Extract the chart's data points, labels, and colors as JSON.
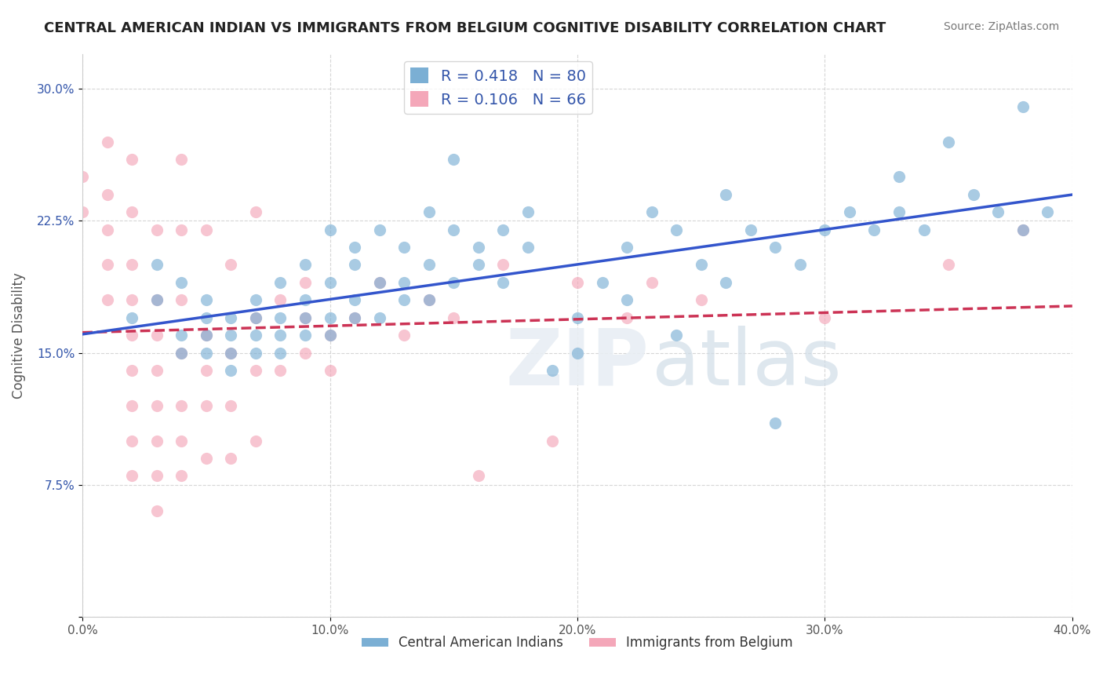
{
  "title": "CENTRAL AMERICAN INDIAN VS IMMIGRANTS FROM BELGIUM COGNITIVE DISABILITY CORRELATION CHART",
  "source": "Source: ZipAtlas.com",
  "xlabel": "",
  "ylabel": "Cognitive Disability",
  "xlim": [
    0.0,
    0.4
  ],
  "ylim": [
    0.0,
    0.32
  ],
  "xticks": [
    0.0,
    0.1,
    0.2,
    0.3,
    0.4
  ],
  "xtick_labels": [
    "0.0%",
    "10.0%",
    "20.0%",
    "30.0%",
    "40.0%"
  ],
  "yticks": [
    0.0,
    0.075,
    0.15,
    0.225,
    0.3
  ],
  "ytick_labels": [
    "",
    "7.5%",
    "15.0%",
    "22.5%",
    "30.0%"
  ],
  "blue_R": 0.418,
  "blue_N": 80,
  "pink_R": 0.106,
  "pink_N": 66,
  "blue_color": "#7bafd4",
  "pink_color": "#f4a7b9",
  "blue_label": "Central American Indians",
  "pink_label": "Immigrants from Belgium",
  "legend_text_color": "#3355aa",
  "watermark": "ZIPatlas",
  "background_color": "#ffffff",
  "grid_color": "#cccccc",
  "blue_scatter": [
    [
      0.02,
      0.17
    ],
    [
      0.03,
      0.2
    ],
    [
      0.03,
      0.18
    ],
    [
      0.04,
      0.19
    ],
    [
      0.04,
      0.16
    ],
    [
      0.04,
      0.15
    ],
    [
      0.05,
      0.17
    ],
    [
      0.05,
      0.16
    ],
    [
      0.05,
      0.15
    ],
    [
      0.05,
      0.18
    ],
    [
      0.06,
      0.17
    ],
    [
      0.06,
      0.16
    ],
    [
      0.06,
      0.15
    ],
    [
      0.06,
      0.14
    ],
    [
      0.07,
      0.18
    ],
    [
      0.07,
      0.17
    ],
    [
      0.07,
      0.16
    ],
    [
      0.07,
      0.15
    ],
    [
      0.08,
      0.19
    ],
    [
      0.08,
      0.17
    ],
    [
      0.08,
      0.16
    ],
    [
      0.08,
      0.15
    ],
    [
      0.09,
      0.2
    ],
    [
      0.09,
      0.18
    ],
    [
      0.09,
      0.17
    ],
    [
      0.09,
      0.16
    ],
    [
      0.1,
      0.22
    ],
    [
      0.1,
      0.19
    ],
    [
      0.1,
      0.17
    ],
    [
      0.1,
      0.16
    ],
    [
      0.11,
      0.21
    ],
    [
      0.11,
      0.2
    ],
    [
      0.11,
      0.18
    ],
    [
      0.11,
      0.17
    ],
    [
      0.12,
      0.22
    ],
    [
      0.12,
      0.19
    ],
    [
      0.12,
      0.17
    ],
    [
      0.13,
      0.21
    ],
    [
      0.13,
      0.19
    ],
    [
      0.13,
      0.18
    ],
    [
      0.14,
      0.23
    ],
    [
      0.14,
      0.2
    ],
    [
      0.14,
      0.18
    ],
    [
      0.15,
      0.22
    ],
    [
      0.15,
      0.19
    ],
    [
      0.16,
      0.21
    ],
    [
      0.16,
      0.2
    ],
    [
      0.17,
      0.22
    ],
    [
      0.17,
      0.19
    ],
    [
      0.18,
      0.23
    ],
    [
      0.18,
      0.21
    ],
    [
      0.19,
      0.14
    ],
    [
      0.2,
      0.17
    ],
    [
      0.2,
      0.15
    ],
    [
      0.21,
      0.19
    ],
    [
      0.22,
      0.21
    ],
    [
      0.22,
      0.18
    ],
    [
      0.23,
      0.23
    ],
    [
      0.24,
      0.22
    ],
    [
      0.24,
      0.16
    ],
    [
      0.25,
      0.2
    ],
    [
      0.26,
      0.19
    ],
    [
      0.27,
      0.22
    ],
    [
      0.28,
      0.21
    ],
    [
      0.29,
      0.2
    ],
    [
      0.3,
      0.22
    ],
    [
      0.31,
      0.23
    ],
    [
      0.32,
      0.22
    ],
    [
      0.33,
      0.23
    ],
    [
      0.34,
      0.22
    ],
    [
      0.35,
      0.27
    ],
    [
      0.36,
      0.24
    ],
    [
      0.37,
      0.23
    ],
    [
      0.38,
      0.22
    ],
    [
      0.38,
      0.29
    ],
    [
      0.39,
      0.23
    ],
    [
      0.33,
      0.25
    ],
    [
      0.28,
      0.11
    ],
    [
      0.26,
      0.24
    ],
    [
      0.15,
      0.26
    ]
  ],
  "pink_scatter": [
    [
      0.0,
      0.25
    ],
    [
      0.0,
      0.23
    ],
    [
      0.01,
      0.27
    ],
    [
      0.01,
      0.24
    ],
    [
      0.01,
      0.22
    ],
    [
      0.01,
      0.2
    ],
    [
      0.01,
      0.18
    ],
    [
      0.02,
      0.26
    ],
    [
      0.02,
      0.23
    ],
    [
      0.02,
      0.2
    ],
    [
      0.02,
      0.18
    ],
    [
      0.02,
      0.16
    ],
    [
      0.02,
      0.14
    ],
    [
      0.02,
      0.12
    ],
    [
      0.02,
      0.1
    ],
    [
      0.02,
      0.08
    ],
    [
      0.03,
      0.22
    ],
    [
      0.03,
      0.18
    ],
    [
      0.03,
      0.16
    ],
    [
      0.03,
      0.14
    ],
    [
      0.03,
      0.12
    ],
    [
      0.03,
      0.1
    ],
    [
      0.03,
      0.08
    ],
    [
      0.03,
      0.06
    ],
    [
      0.04,
      0.26
    ],
    [
      0.04,
      0.22
    ],
    [
      0.04,
      0.18
    ],
    [
      0.04,
      0.15
    ],
    [
      0.04,
      0.12
    ],
    [
      0.04,
      0.1
    ],
    [
      0.04,
      0.08
    ],
    [
      0.05,
      0.22
    ],
    [
      0.05,
      0.16
    ],
    [
      0.05,
      0.14
    ],
    [
      0.05,
      0.12
    ],
    [
      0.05,
      0.09
    ],
    [
      0.06,
      0.2
    ],
    [
      0.06,
      0.15
    ],
    [
      0.06,
      0.12
    ],
    [
      0.06,
      0.09
    ],
    [
      0.07,
      0.23
    ],
    [
      0.07,
      0.17
    ],
    [
      0.07,
      0.14
    ],
    [
      0.07,
      0.1
    ],
    [
      0.08,
      0.18
    ],
    [
      0.08,
      0.14
    ],
    [
      0.09,
      0.19
    ],
    [
      0.09,
      0.15
    ],
    [
      0.09,
      0.17
    ],
    [
      0.1,
      0.16
    ],
    [
      0.1,
      0.14
    ],
    [
      0.11,
      0.17
    ],
    [
      0.12,
      0.19
    ],
    [
      0.13,
      0.16
    ],
    [
      0.14,
      0.18
    ],
    [
      0.15,
      0.17
    ],
    [
      0.16,
      0.08
    ],
    [
      0.17,
      0.2
    ],
    [
      0.19,
      0.1
    ],
    [
      0.2,
      0.19
    ],
    [
      0.22,
      0.17
    ],
    [
      0.23,
      0.19
    ],
    [
      0.25,
      0.18
    ],
    [
      0.3,
      0.17
    ],
    [
      0.35,
      0.2
    ],
    [
      0.38,
      0.22
    ]
  ]
}
